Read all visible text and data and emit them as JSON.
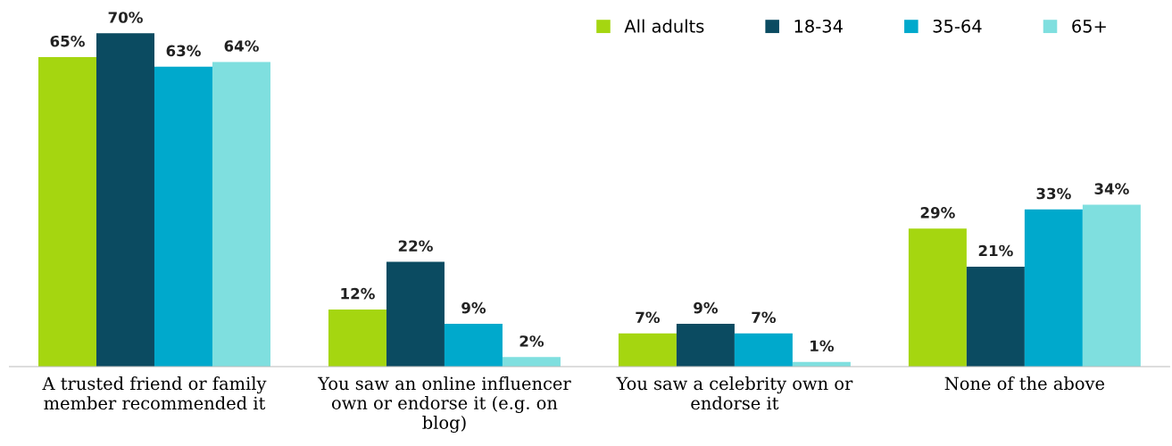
{
  "chart_data": {
    "type": "bar",
    "categories": [
      "A trusted friend or family\nmember recommended it",
      "You saw an online influencer\nown or endorse it (e.g. on\nblog)",
      "You saw a celebrity own or\nendorse it",
      "None of the above"
    ],
    "series": [
      {
        "name": "All adults",
        "color": "#a5d610",
        "values": [
          65,
          12,
          7,
          29
        ],
        "value_labels": [
          "65%",
          "12%",
          "7%",
          "29%"
        ]
      },
      {
        "name": "18-34",
        "color": "#0b4b61",
        "values": [
          70,
          22,
          9,
          21
        ],
        "value_labels": [
          "70%",
          "22%",
          "9%",
          "21%"
        ]
      },
      {
        "name": "35-64",
        "color": "#00a9cc",
        "values": [
          63,
          9,
          7,
          33
        ],
        "value_labels": [
          "63%",
          "9%",
          "7%",
          "33%"
        ]
      },
      {
        "name": "65+",
        "color": "#7fdfdf",
        "values": [
          64,
          2,
          1,
          34
        ],
        "value_labels": [
          "64%",
          "2%",
          "1%",
          "34%"
        ]
      }
    ],
    "tick_labels": "x",
    "grid": false,
    "legend": "top right"
  }
}
